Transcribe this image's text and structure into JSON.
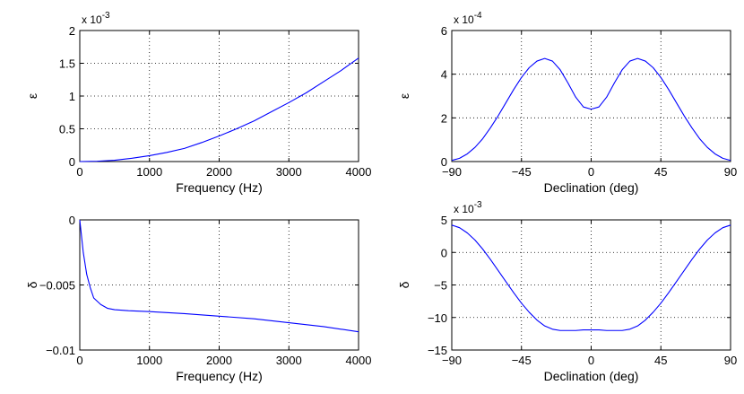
{
  "chart_data": [
    {
      "type": "line",
      "title": "",
      "xlabel": "Frequency (Hz)",
      "ylabel": "ε",
      "exponent_label": "x 10",
      "exponent_power": "-3",
      "xlim": [
        0,
        4000
      ],
      "ylim": [
        0,
        2
      ],
      "x_ticks": [
        0,
        1000,
        2000,
        3000,
        4000
      ],
      "x_tick_labels": [
        "0",
        "1000",
        "2000",
        "3000",
        "4000"
      ],
      "y_ticks": [
        0,
        0.5,
        1,
        1.5,
        2
      ],
      "y_tick_labels": [
        "0",
        "0.5",
        "1",
        "1.5",
        "2"
      ],
      "grid": true,
      "line_color": "#0000ff",
      "series": [
        {
          "x": [
            0,
            250,
            500,
            750,
            1000,
            1250,
            1500,
            1750,
            2000,
            2250,
            2500,
            2750,
            3000,
            3250,
            3500,
            3750,
            4000
          ],
          "y": [
            0,
            0.005,
            0.02,
            0.05,
            0.09,
            0.14,
            0.2,
            0.29,
            0.39,
            0.5,
            0.62,
            0.76,
            0.9,
            1.05,
            1.22,
            1.39,
            1.58
          ]
        }
      ]
    },
    {
      "type": "line",
      "title": "",
      "xlabel": "Declination (deg)",
      "ylabel": "ε",
      "exponent_label": "x 10",
      "exponent_power": "-4",
      "xlim": [
        -90,
        90
      ],
      "ylim": [
        0,
        6
      ],
      "x_ticks": [
        -90,
        -45,
        0,
        45,
        90
      ],
      "x_tick_labels": [
        "−90",
        "−45",
        "0",
        "45",
        "90"
      ],
      "y_ticks": [
        0,
        2,
        4,
        6
      ],
      "y_tick_labels": [
        "0",
        "2",
        "4",
        "6"
      ],
      "grid": true,
      "line_color": "#0000ff",
      "series": [
        {
          "x": [
            -90,
            -85,
            -80,
            -75,
            -70,
            -65,
            -60,
            -55,
            -50,
            -45,
            -40,
            -35,
            -30,
            -25,
            -20,
            -15,
            -10,
            -5,
            0,
            5,
            10,
            15,
            20,
            25,
            30,
            35,
            40,
            45,
            50,
            55,
            60,
            65,
            70,
            75,
            80,
            85,
            90
          ],
          "y": [
            0.05,
            0.15,
            0.35,
            0.65,
            1.05,
            1.55,
            2.1,
            2.7,
            3.3,
            3.85,
            4.3,
            4.6,
            4.72,
            4.6,
            4.2,
            3.6,
            2.95,
            2.5,
            2.4,
            2.5,
            2.95,
            3.6,
            4.2,
            4.6,
            4.72,
            4.6,
            4.3,
            3.85,
            3.3,
            2.7,
            2.1,
            1.55,
            1.05,
            0.65,
            0.35,
            0.15,
            0.05
          ]
        }
      ]
    },
    {
      "type": "line",
      "title": "",
      "xlabel": "Frequency (Hz)",
      "ylabel": "δ",
      "exponent_label": "",
      "exponent_power": "",
      "xlim": [
        0,
        4000
      ],
      "ylim": [
        -0.01,
        0
      ],
      "x_ticks": [
        0,
        1000,
        2000,
        3000,
        4000
      ],
      "x_tick_labels": [
        "0",
        "1000",
        "2000",
        "3000",
        "4000"
      ],
      "y_ticks": [
        -0.01,
        -0.005,
        0
      ],
      "y_tick_labels": [
        "−0.01",
        "−0.005",
        "0"
      ],
      "grid": true,
      "line_color": "#0000ff",
      "series": [
        {
          "x": [
            0,
            50,
            100,
            150,
            200,
            300,
            400,
            500,
            700,
            1000,
            1500,
            2000,
            2500,
            3000,
            3500,
            4000
          ],
          "y": [
            0,
            -0.0025,
            -0.0042,
            -0.0052,
            -0.006,
            -0.0065,
            -0.0068,
            -0.0069,
            -0.00698,
            -0.00705,
            -0.0072,
            -0.0074,
            -0.0076,
            -0.0079,
            -0.0082,
            -0.0086
          ]
        }
      ]
    },
    {
      "type": "line",
      "title": "",
      "xlabel": "Declination (deg)",
      "ylabel": "δ",
      "exponent_label": "x 10",
      "exponent_power": "-3",
      "xlim": [
        -90,
        90
      ],
      "ylim": [
        -15,
        5
      ],
      "x_ticks": [
        -90,
        -45,
        0,
        45,
        90
      ],
      "x_tick_labels": [
        "−90",
        "−45",
        "0",
        "45",
        "90"
      ],
      "y_ticks": [
        -15,
        -10,
        -5,
        0,
        5
      ],
      "y_tick_labels": [
        "−15",
        "−10",
        "−5",
        "0",
        "5"
      ],
      "grid": true,
      "line_color": "#0000ff",
      "series": [
        {
          "x": [
            -90,
            -85,
            -80,
            -75,
            -70,
            -65,
            -60,
            -55,
            -50,
            -45,
            -40,
            -35,
            -30,
            -25,
            -20,
            -15,
            -10,
            -5,
            0,
            5,
            10,
            15,
            20,
            25,
            30,
            35,
            40,
            45,
            50,
            55,
            60,
            65,
            70,
            75,
            80,
            85,
            90
          ],
          "y": [
            4.2,
            3.8,
            3.0,
            1.9,
            0.5,
            -1.1,
            -2.8,
            -4.5,
            -6.2,
            -7.8,
            -9.2,
            -10.4,
            -11.3,
            -11.8,
            -12.0,
            -12.0,
            -12.0,
            -11.9,
            -11.9,
            -11.9,
            -12.0,
            -12.0,
            -12.0,
            -11.8,
            -11.3,
            -10.4,
            -9.2,
            -7.8,
            -6.2,
            -4.5,
            -2.8,
            -1.1,
            0.5,
            1.9,
            3.0,
            3.8,
            4.2
          ]
        }
      ]
    }
  ]
}
